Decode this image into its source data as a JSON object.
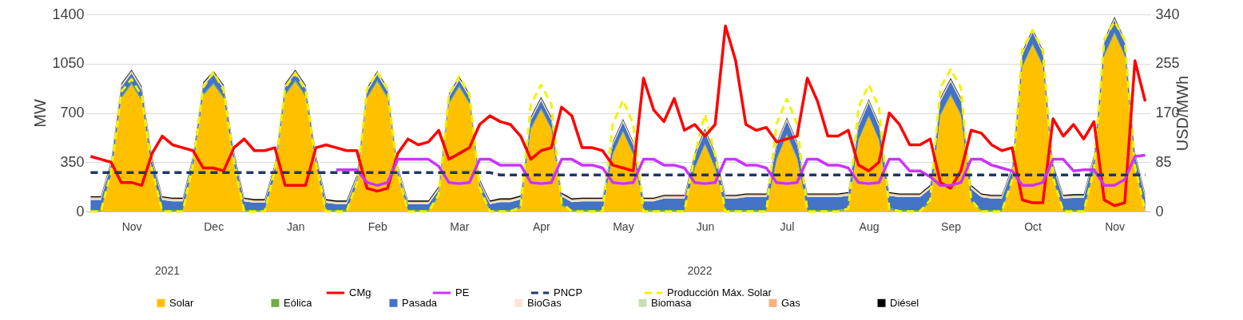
{
  "chart_data": {
    "type": "area",
    "stacked": true,
    "legend": "bottom",
    "ylabel": "MW",
    "y2label": "USD/MWh",
    "ylim": [
      0,
      1400
    ],
    "yticks": [
      0,
      350,
      700,
      1050,
      1400
    ],
    "grid": "y",
    "y2lim": [
      0,
      340
    ],
    "y2ticks": [
      0,
      85,
      170,
      255,
      340
    ],
    "annotations": [
      "2021",
      "2022"
    ],
    "categories": [
      null,
      null,
      null,
      null,
      "Nov",
      null,
      null,
      null,
      null,
      null,
      null,
      null,
      "Dec",
      null,
      null,
      null,
      null,
      null,
      null,
      null,
      "Jan",
      null,
      null,
      null,
      null,
      null,
      null,
      null,
      "Feb",
      null,
      null,
      null,
      null,
      null,
      null,
      null,
      "Mar",
      null,
      null,
      null,
      null,
      null,
      null,
      null,
      "Apr",
      null,
      null,
      null,
      null,
      null,
      null,
      null,
      "May",
      null,
      null,
      null,
      null,
      null,
      null,
      null,
      "Jun",
      null,
      null,
      null,
      null,
      null,
      null,
      null,
      "Jul",
      null,
      null,
      null,
      null,
      null,
      null,
      null,
      "Aug",
      null,
      null,
      null,
      null,
      null,
      null,
      null,
      "Sep",
      null,
      null,
      null,
      null,
      null,
      null,
      null,
      "Oct",
      null,
      null,
      null,
      null,
      null,
      null,
      null,
      "Nov",
      null,
      null,
      null
    ],
    "series": [
      {
        "name": "Solar",
        "color": "#ffc000",
        "values": [
          0,
          0,
          250,
          800,
          900,
          780,
          280,
          0,
          0,
          0,
          300,
          820,
          900,
          800,
          330,
          0,
          0,
          0,
          250,
          820,
          920,
          810,
          320,
          0,
          0,
          0,
          180,
          800,
          920,
          800,
          250,
          0,
          0,
          0,
          100,
          760,
          880,
          760,
          150,
          0,
          0,
          0,
          20,
          580,
          720,
          580,
          40,
          0,
          0,
          0,
          0,
          400,
          560,
          400,
          0,
          0,
          0,
          0,
          0,
          300,
          470,
          300,
          0,
          0,
          0,
          0,
          0,
          360,
          540,
          370,
          0,
          0,
          0,
          0,
          10,
          500,
          670,
          500,
          10,
          0,
          0,
          0,
          60,
          680,
          820,
          680,
          60,
          0,
          0,
          0,
          200,
          1020,
          1180,
          1030,
          220,
          0,
          0,
          0,
          280,
          1100,
          1260,
          1100,
          300,
          0
        ]
      },
      {
        "name": "Eólica",
        "color": "#70ad47",
        "values": [
          12,
          12,
          12,
          12,
          12,
          12,
          12,
          12,
          12,
          12,
          12,
          12,
          12,
          12,
          12,
          12,
          12,
          12,
          12,
          12,
          12,
          12,
          12,
          12,
          12,
          12,
          12,
          12,
          12,
          12,
          12,
          12,
          12,
          12,
          12,
          12,
          12,
          12,
          12,
          12,
          12,
          12,
          12,
          12,
          12,
          12,
          12,
          12,
          12,
          12,
          12,
          12,
          12,
          12,
          12,
          12,
          12,
          12,
          12,
          12,
          12,
          12,
          12,
          12,
          12,
          12,
          12,
          12,
          12,
          12,
          12,
          12,
          12,
          12,
          12,
          12,
          12,
          12,
          12,
          12,
          12,
          12,
          12,
          12,
          12,
          12,
          12,
          12,
          12,
          12,
          12,
          12,
          12,
          12,
          12,
          12,
          12,
          12,
          12,
          12,
          12,
          12,
          12,
          12
        ]
      },
      {
        "name": "Pasada",
        "color": "#4472c4",
        "values": [
          70,
          70,
          70,
          70,
          70,
          70,
          70,
          70,
          60,
          60,
          60,
          60,
          60,
          60,
          60,
          60,
          50,
          50,
          50,
          50,
          50,
          50,
          50,
          50,
          40,
          40,
          40,
          40,
          40,
          40,
          40,
          40,
          40,
          40,
          40,
          40,
          40,
          40,
          40,
          40,
          55,
          55,
          55,
          55,
          55,
          55,
          55,
          55,
          60,
          60,
          60,
          60,
          60,
          60,
          60,
          60,
          80,
          80,
          80,
          80,
          80,
          80,
          80,
          80,
          90,
          90,
          90,
          90,
          90,
          90,
          90,
          90,
          90,
          90,
          90,
          90,
          90,
          90,
          90,
          90,
          90,
          90,
          90,
          90,
          90,
          90,
          90,
          90,
          80,
          80,
          80,
          80,
          80,
          80,
          80,
          80,
          85,
          85,
          85,
          85,
          85,
          85,
          85,
          85
        ]
      },
      {
        "name": "BioGas",
        "color": "#fbe5d6",
        "values": [
          6,
          6,
          6,
          6,
          6,
          6,
          6,
          6,
          6,
          6,
          6,
          6,
          6,
          6,
          6,
          6,
          6,
          6,
          6,
          6,
          6,
          6,
          6,
          6,
          6,
          6,
          6,
          6,
          6,
          6,
          6,
          6,
          6,
          6,
          6,
          6,
          6,
          6,
          6,
          6,
          6,
          6,
          6,
          6,
          6,
          6,
          6,
          6,
          6,
          6,
          6,
          6,
          6,
          6,
          6,
          6,
          6,
          6,
          6,
          6,
          6,
          6,
          6,
          6,
          6,
          6,
          6,
          6,
          6,
          6,
          6,
          6,
          6,
          6,
          6,
          6,
          6,
          6,
          6,
          6,
          6,
          6,
          6,
          6,
          6,
          6,
          6,
          6,
          6,
          6,
          6,
          6,
          6,
          6,
          6,
          6,
          6,
          6,
          6,
          6,
          6,
          6,
          6,
          6
        ]
      },
      {
        "name": "Biomasa",
        "color": "#c5e0b4",
        "values": [
          6,
          6,
          6,
          6,
          6,
          6,
          6,
          6,
          6,
          6,
          6,
          6,
          6,
          6,
          6,
          6,
          6,
          6,
          6,
          6,
          6,
          6,
          6,
          6,
          6,
          6,
          6,
          6,
          6,
          6,
          6,
          6,
          6,
          6,
          6,
          6,
          6,
          6,
          6,
          6,
          6,
          6,
          6,
          6,
          6,
          6,
          6,
          6,
          6,
          6,
          6,
          6,
          6,
          6,
          6,
          6,
          6,
          6,
          6,
          6,
          6,
          6,
          6,
          6,
          6,
          6,
          6,
          6,
          6,
          6,
          6,
          6,
          6,
          6,
          6,
          6,
          6,
          6,
          6,
          6,
          6,
          6,
          6,
          6,
          6,
          6,
          6,
          6,
          6,
          6,
          6,
          6,
          6,
          6,
          6,
          6,
          6,
          6,
          6,
          6,
          6,
          6,
          6,
          6
        ]
      },
      {
        "name": "Gas",
        "color": "#f4b183",
        "values": [
          6,
          6,
          6,
          6,
          6,
          6,
          6,
          6,
          6,
          6,
          6,
          6,
          6,
          6,
          6,
          6,
          6,
          6,
          6,
          6,
          6,
          6,
          6,
          6,
          6,
          6,
          6,
          6,
          6,
          6,
          6,
          6,
          6,
          6,
          6,
          6,
          6,
          6,
          6,
          6,
          6,
          6,
          6,
          6,
          6,
          6,
          6,
          6,
          6,
          6,
          6,
          6,
          6,
          6,
          6,
          6,
          6,
          6,
          6,
          6,
          6,
          6,
          6,
          6,
          6,
          6,
          6,
          6,
          6,
          6,
          6,
          6,
          6,
          6,
          6,
          6,
          6,
          6,
          6,
          6,
          6,
          6,
          6,
          6,
          6,
          6,
          6,
          6,
          6,
          6,
          6,
          6,
          6,
          6,
          6,
          6,
          6,
          6,
          6,
          6,
          6,
          6,
          6,
          6
        ]
      },
      {
        "name": "Diésel",
        "color": "#000000",
        "values": [
          8,
          8,
          8,
          8,
          8,
          8,
          8,
          8,
          8,
          8,
          8,
          8,
          8,
          8,
          8,
          8,
          8,
          8,
          8,
          8,
          8,
          8,
          8,
          8,
          8,
          8,
          8,
          8,
          8,
          8,
          8,
          8,
          8,
          8,
          8,
          8,
          8,
          8,
          8,
          8,
          8,
          8,
          8,
          8,
          8,
          8,
          8,
          8,
          8,
          8,
          8,
          8,
          8,
          8,
          8,
          8,
          8,
          8,
          8,
          8,
          8,
          8,
          8,
          8,
          8,
          8,
          8,
          8,
          8,
          8,
          8,
          8,
          8,
          8,
          8,
          8,
          8,
          8,
          8,
          8,
          8,
          8,
          8,
          8,
          8,
          8,
          8,
          8,
          8,
          8,
          8,
          8,
          8,
          8,
          8,
          8,
          8,
          8,
          8,
          8,
          8,
          8,
          8,
          8
        ]
      },
      {
        "name": "CMg",
        "type": "line",
        "axis": "y2",
        "line_style": "solid",
        "color": "#ff0000",
        "values": [
          95,
          90,
          85,
          50,
          50,
          45,
          100,
          130,
          115,
          110,
          105,
          75,
          75,
          70,
          110,
          125,
          105,
          105,
          110,
          45,
          45,
          45,
          110,
          115,
          110,
          105,
          105,
          40,
          35,
          40,
          100,
          125,
          115,
          120,
          140,
          90,
          100,
          110,
          150,
          165,
          155,
          150,
          130,
          90,
          105,
          110,
          180,
          165,
          110,
          110,
          105,
          80,
          75,
          70,
          230,
          175,
          155,
          195,
          140,
          150,
          130,
          150,
          320,
          260,
          150,
          140,
          145,
          120,
          125,
          130,
          230,
          190,
          130,
          130,
          140,
          80,
          70,
          85,
          170,
          150,
          115,
          115,
          125,
          50,
          40,
          70,
          140,
          135,
          115,
          105,
          110,
          20,
          15,
          15,
          160,
          130,
          150,
          125,
          155,
          20,
          10,
          15,
          260,
          190
        ]
      },
      {
        "name": "PE",
        "type": "line",
        "axis": "y2",
        "line_style": "solid",
        "color": "#cc33ff",
        "values": [
          null,
          null,
          null,
          null,
          null,
          null,
          null,
          null,
          null,
          null,
          null,
          null,
          null,
          null,
          null,
          null,
          null,
          null,
          null,
          null,
          null,
          null,
          null,
          null,
          72,
          72,
          72,
          50,
          45,
          50,
          90,
          90,
          90,
          90,
          78,
          50,
          48,
          50,
          90,
          90,
          80,
          80,
          80,
          50,
          48,
          50,
          90,
          90,
          80,
          80,
          75,
          50,
          48,
          50,
          90,
          90,
          80,
          80,
          75,
          50,
          48,
          50,
          90,
          90,
          80,
          80,
          75,
          50,
          48,
          50,
          90,
          90,
          80,
          80,
          75,
          50,
          48,
          50,
          90,
          90,
          70,
          70,
          60,
          45,
          45,
          50,
          90,
          90,
          80,
          75,
          70,
          45,
          45,
          50,
          90,
          90,
          70,
          72,
          72,
          45,
          45,
          55,
          95,
          97
        ]
      },
      {
        "name": "PNCP",
        "type": "line",
        "axis": "y2",
        "line_style": "dashed",
        "color": "#203864",
        "values": [
          67,
          67,
          67,
          67,
          67,
          67,
          67,
          67,
          67,
          67,
          67,
          67,
          67,
          67,
          67,
          67,
          67,
          67,
          67,
          67,
          67,
          67,
          67,
          67,
          67,
          67,
          67,
          67,
          67,
          67,
          67,
          67,
          67,
          67,
          67,
          67,
          67,
          67,
          67,
          67,
          63,
          63,
          63,
          63,
          63,
          63,
          63,
          63,
          63,
          63,
          63,
          63,
          63,
          63,
          63,
          63,
          63,
          63,
          63,
          63,
          63,
          63,
          63,
          63,
          63,
          63,
          63,
          63,
          63,
          63,
          63,
          63,
          63,
          63,
          63,
          63,
          63,
          63,
          63,
          63,
          63,
          63,
          63,
          63,
          63,
          63,
          63,
          63,
          63,
          63,
          63,
          63,
          63,
          63,
          63,
          63,
          63,
          63,
          63,
          63,
          63,
          63,
          63,
          63
        ]
      },
      {
        "name": "Producción Máx. Solar",
        "type": "line",
        "axis": "y",
        "line_style": "dashed",
        "color": "#f2f200",
        "values": [
          0,
          0,
          280,
          850,
          940,
          820,
          300,
          0,
          0,
          0,
          330,
          880,
          990,
          860,
          350,
          0,
          0,
          0,
          290,
          880,
          980,
          860,
          340,
          0,
          0,
          0,
          200,
          870,
          990,
          870,
          270,
          0,
          0,
          0,
          120,
          830,
          960,
          830,
          170,
          0,
          0,
          0,
          30,
          760,
          900,
          760,
          60,
          0,
          0,
          0,
          0,
          620,
          790,
          620,
          0,
          0,
          0,
          0,
          0,
          400,
          690,
          400,
          0,
          0,
          0,
          0,
          0,
          620,
          800,
          620,
          0,
          0,
          0,
          0,
          20,
          740,
          900,
          740,
          20,
          0,
          0,
          0,
          80,
          880,
          1010,
          880,
          80,
          0,
          0,
          0,
          220,
          1150,
          1290,
          1150,
          240,
          0,
          0,
          0,
          300,
          1220,
          1350,
          1220,
          320,
          0
        ]
      }
    ]
  }
}
